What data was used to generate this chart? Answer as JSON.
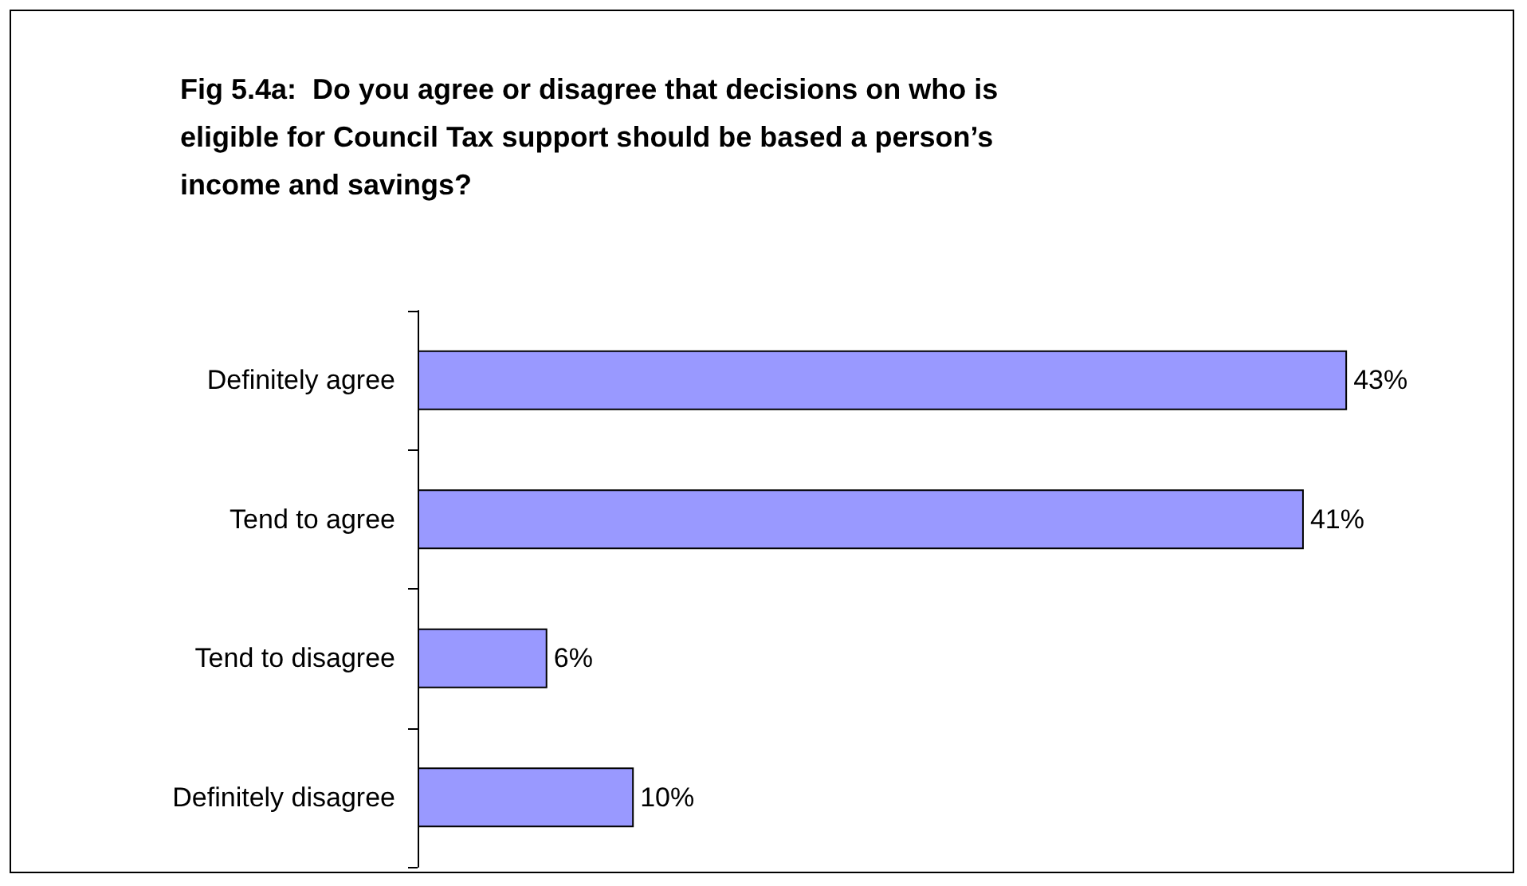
{
  "chart_data": {
    "type": "bar",
    "orientation": "horizontal",
    "title": "Fig 5.4a:  Do you agree or disagree that decisions on who is eligible for Council Tax support should be based a person’s income and savings?",
    "categories": [
      "Definitely agree",
      "Tend to agree",
      "Tend to disagree",
      "Definitely disagree"
    ],
    "values": [
      43,
      41,
      6,
      10
    ],
    "value_labels": [
      "43%",
      "41%",
      "6%",
      "10%"
    ],
    "color": "#9999ff",
    "grid": false
  }
}
